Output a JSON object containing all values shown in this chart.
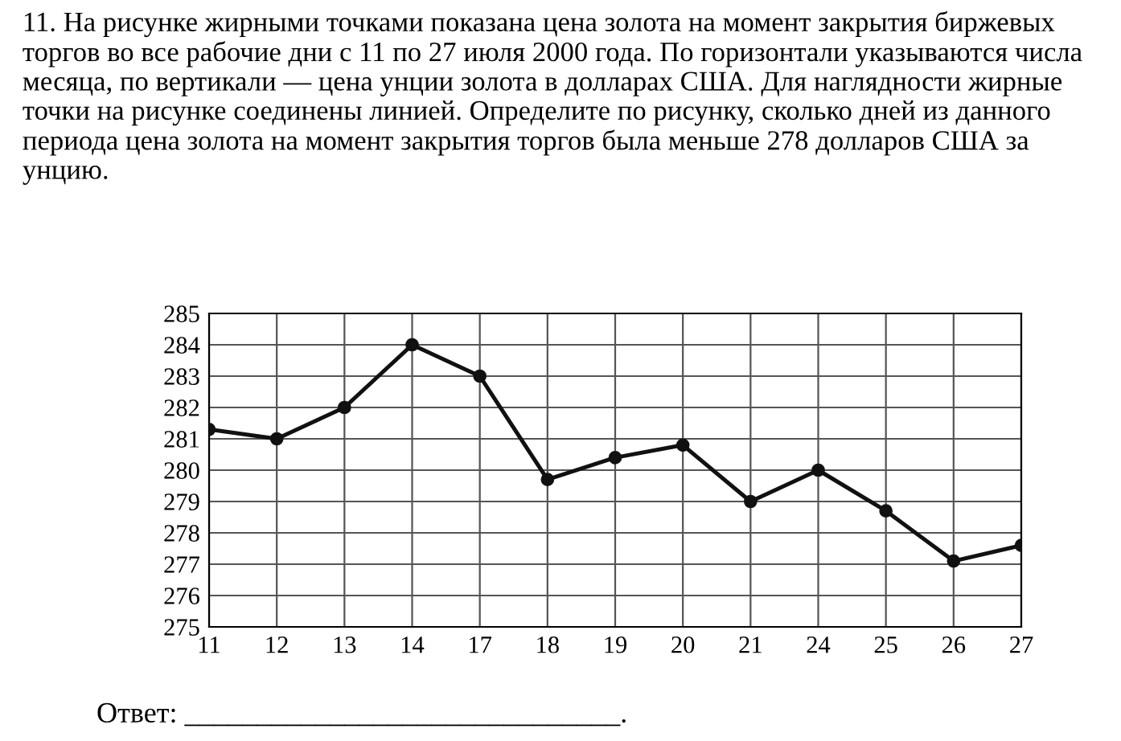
{
  "chart_data": {
    "type": "line",
    "title": "11. На рисунке жирными точками показана цена золота на момент закрытия биржевых торгов во все рабочие дни с 11 по 27 июля 2000 года. По горизонтали указываются числа месяца, по вертикали — цена унции золота в долларах США. Для наглядности жирные точки на рисунке соединены линией. Определите по рисунку, сколько дней из данного периода цена золота на момент закрытия торгов была меньше 278 долларов США за унцию.",
    "categories": [
      "11",
      "12",
      "13",
      "14",
      "17",
      "18",
      "19",
      "20",
      "21",
      "24",
      "25",
      "26",
      "27"
    ],
    "values": [
      281.3,
      281,
      282,
      284,
      283,
      279.7,
      280.4,
      280.8,
      279,
      280,
      278.7,
      277.1,
      277.6
    ],
    "color": "#111111",
    "ylim": [
      275,
      285
    ],
    "yticks": [
      275,
      276,
      277,
      278,
      279,
      280,
      281,
      282,
      283,
      284,
      285
    ],
    "grid": true,
    "marker": "circle",
    "line_style": "solid",
    "annotations": [
      "Ответ: ______________________________."
    ]
  }
}
